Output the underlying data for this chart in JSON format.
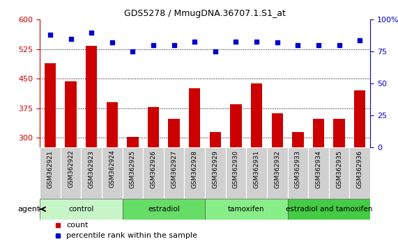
{
  "title": "GDS5278 / MmugDNA.36707.1.S1_at",
  "samples": [
    "GSM362921",
    "GSM362922",
    "GSM362923",
    "GSM362924",
    "GSM362925",
    "GSM362926",
    "GSM362927",
    "GSM362928",
    "GSM362929",
    "GSM362930",
    "GSM362931",
    "GSM362932",
    "GSM362933",
    "GSM362934",
    "GSM362935",
    "GSM362936"
  ],
  "counts": [
    490,
    443,
    533,
    390,
    302,
    378,
    348,
    425,
    315,
    384,
    438,
    362,
    315,
    348,
    348,
    420
  ],
  "percentiles": [
    88,
    85,
    90,
    82,
    75,
    80,
    80,
    83,
    75,
    83,
    83,
    82,
    80,
    80,
    80,
    84
  ],
  "bar_color": "#cc0000",
  "dot_color": "#0000cc",
  "ylim_left": [
    275,
    600
  ],
  "ylim_right": [
    0,
    100
  ],
  "yticks_left": [
    300,
    375,
    450,
    525,
    600
  ],
  "yticks_right": [
    0,
    25,
    50,
    75,
    100
  ],
  "groups": [
    {
      "label": "control",
      "start": 0,
      "end": 3,
      "color": "#c8f5c8"
    },
    {
      "label": "estradiol",
      "start": 4,
      "end": 7,
      "color": "#66dd66"
    },
    {
      "label": "tamoxifen",
      "start": 8,
      "end": 11,
      "color": "#88ee88"
    },
    {
      "label": "estradiol and tamoxifen",
      "start": 12,
      "end": 15,
      "color": "#44cc44"
    }
  ],
  "agent_label": "agent",
  "legend_count": "count",
  "legend_pct": "percentile rank within the sample",
  "bar_width": 0.55,
  "xtick_bg": "#d0d0d0",
  "group_border_color": "#555555"
}
